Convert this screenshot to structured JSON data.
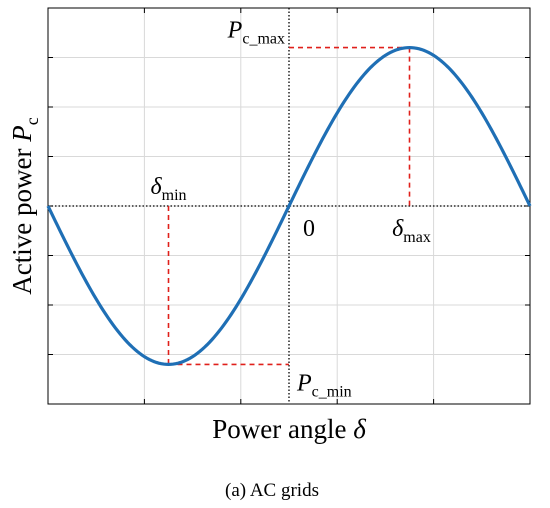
{
  "chart_data": {
    "type": "line",
    "title": "",
    "caption": "(a) AC grids",
    "xlabel": {
      "text": "Power angle ",
      "symbol": "δ"
    },
    "ylabel": {
      "text": "Active power ",
      "symbol": "P",
      "subscript": "c"
    },
    "xlim": [
      -3.14159,
      3.14159
    ],
    "ylim": [
      -1.25,
      1.25
    ],
    "grid": true,
    "series": [
      {
        "color": "#1f6fb5",
        "function": "sin",
        "x": [
          -3.1416,
          -2.618,
          -2.0944,
          -1.5708,
          -1.0472,
          -0.5236,
          0,
          0.5236,
          1.0472,
          1.5708,
          2.0944,
          2.618,
          3.1416
        ],
        "y": [
          0,
          -0.5,
          -0.866,
          -1,
          -0.866,
          -0.5,
          0,
          0.5,
          0.866,
          1,
          0.866,
          0.5,
          0
        ]
      }
    ],
    "annotations": {
      "p_max": {
        "symbol": "P",
        "subscript": "c_max",
        "x": 1.5708,
        "y": 1
      },
      "p_min": {
        "symbol": "P",
        "subscript": "c_min",
        "x": -1.5708,
        "y": -1
      },
      "delta_max": {
        "symbol": "δ",
        "subscript": "max",
        "x": 1.5708
      },
      "delta_min": {
        "symbol": "δ",
        "subscript": "min",
        "x": -1.5708
      },
      "origin": "0"
    },
    "colors": {
      "curve": "#1f6fb5",
      "guide": "#e0201b",
      "axis": "#000000",
      "grid": "#d9d9d9"
    }
  }
}
